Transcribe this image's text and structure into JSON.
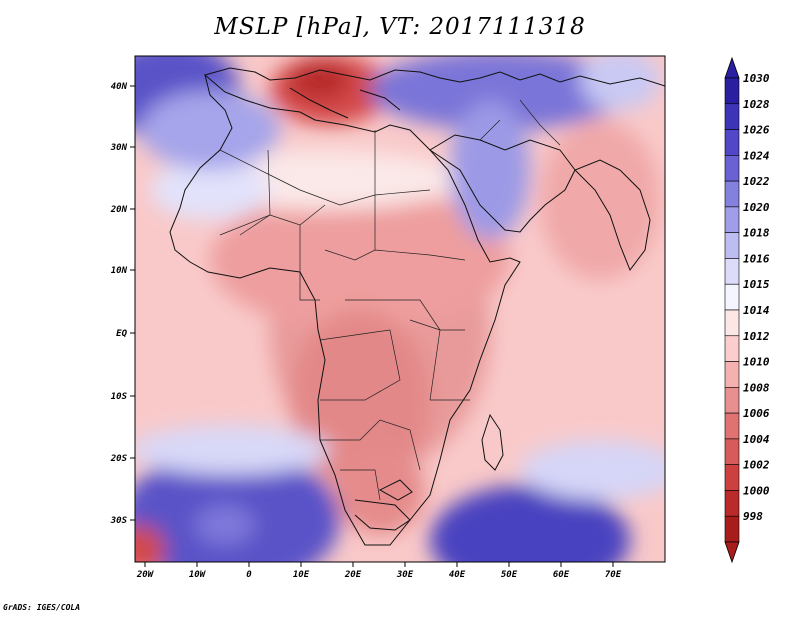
{
  "title": "MSLP [hPa], VT: 2017111318",
  "credit": "GrADS: IGES/COLA",
  "lon_labels": [
    "20W",
    "10W",
    "0",
    "10E",
    "20E",
    "30E",
    "40E",
    "50E",
    "60E",
    "70E"
  ],
  "lat_labels": [
    "40N",
    "30N",
    "20N",
    "10N",
    "EQ",
    "10S",
    "20S",
    "30S"
  ],
  "colorbar": {
    "levels": [
      "1030",
      "1028",
      "1026",
      "1024",
      "1022",
      "1020",
      "1018",
      "1016",
      "1015",
      "1014",
      "1012",
      "1010",
      "1008",
      "1006",
      "1004",
      "1002",
      "1000",
      "998"
    ],
    "colors": [
      "#2a1fa0",
      "#3e34b8",
      "#5247c8",
      "#6a62d4",
      "#8480de",
      "#a09ee8",
      "#bdbdf2",
      "#dcdcfa",
      "#f5f5ff",
      "#fde6e6",
      "#fbcdcd",
      "#f5b0b0",
      "#e89090",
      "#e07272",
      "#d85a5a",
      "#cc4040",
      "#bb2a2a",
      "#a81c1c"
    ]
  }
}
